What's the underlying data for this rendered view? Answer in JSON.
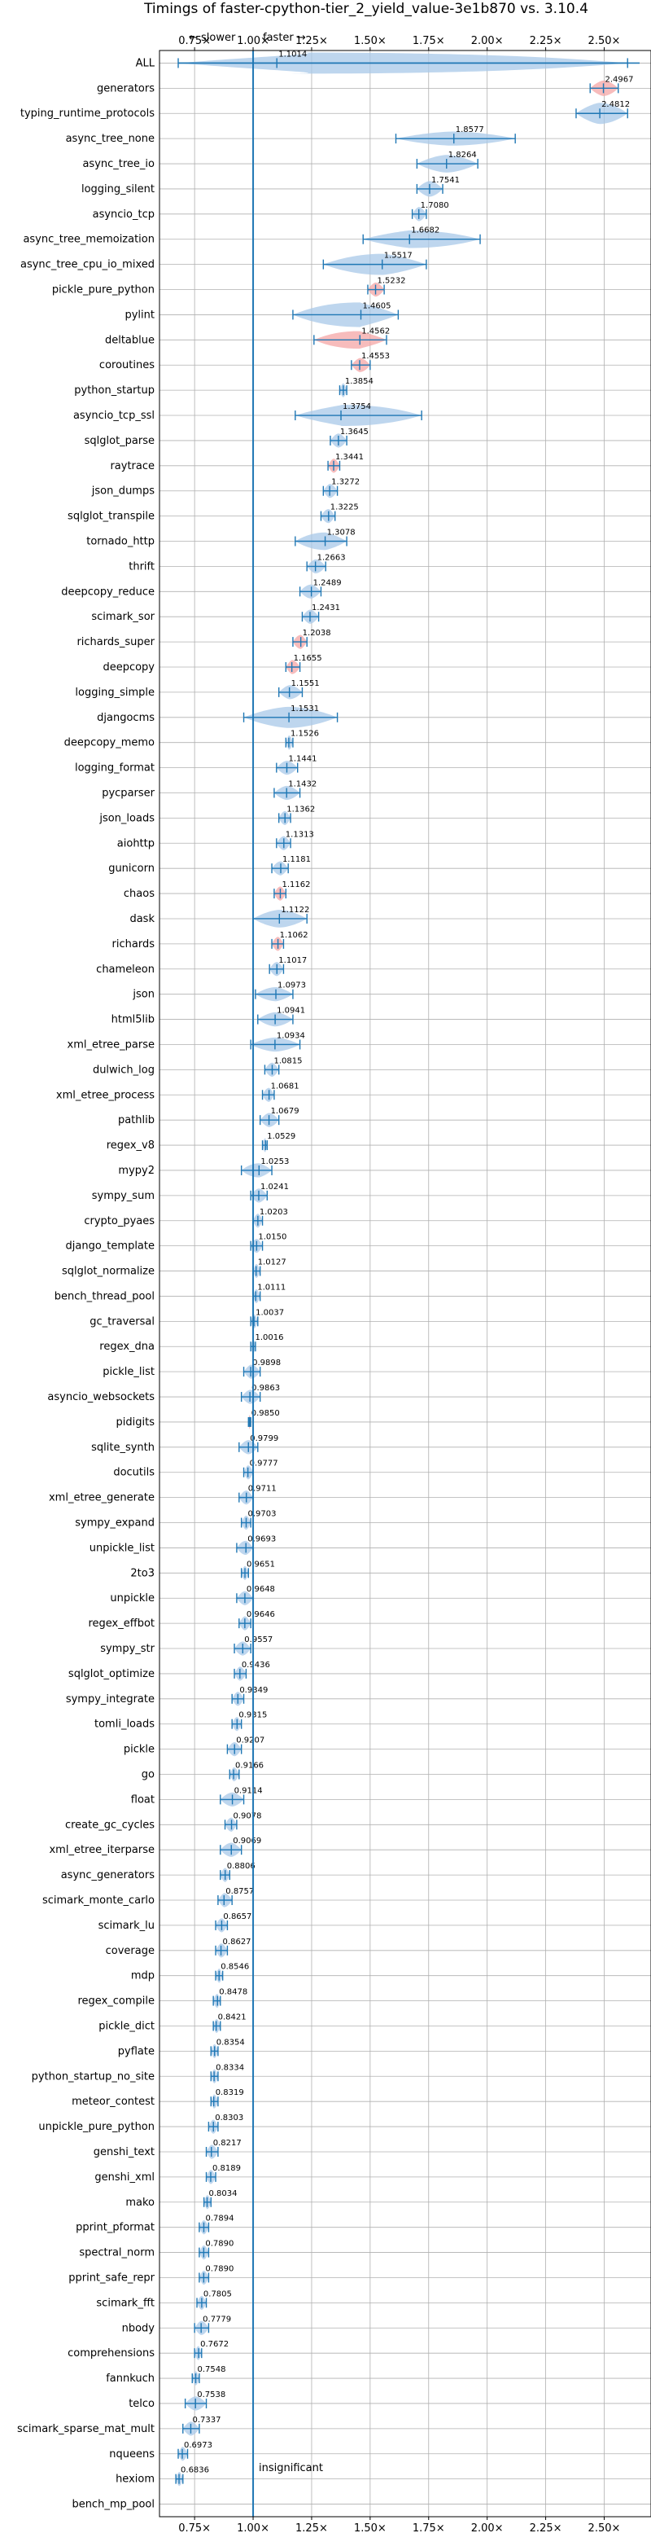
{
  "chart_data": {
    "type": "violin",
    "title": "Timings of faster-cpython-tier_2_yield_value-3e1b870 vs. 3.10.4",
    "direction_slower": "← slower",
    "direction_faster": "faster →",
    "xlim": [
      0.6,
      2.7
    ],
    "xticks": [
      0.75,
      1.0,
      1.25,
      1.5,
      1.75,
      2.0,
      2.25,
      2.5
    ],
    "xtick_labels": [
      "0.75×",
      "1.00×",
      "1.25×",
      "1.50×",
      "1.75×",
      "2.00×",
      "2.25×",
      "2.50×"
    ],
    "insignificant_label": "insignificant",
    "colors": {
      "faster": "#a8c8e8",
      "slower": "#f4a6a6",
      "line": "#1f77b4",
      "median": "#ff0000"
    },
    "benchmarks": [
      {
        "name": "ALL",
        "value": 1.1014,
        "label": "1.1014",
        "lo": 0.68,
        "hi": 2.6,
        "half": 0.3,
        "sig": true
      },
      {
        "name": "generators",
        "value": 2.4967,
        "label": "2.4967",
        "lo": 2.44,
        "hi": 2.56,
        "half": 0.22,
        "sig": true
      },
      {
        "name": "typing_runtime_protocols",
        "value": 2.4812,
        "label": "2.4812",
        "lo": 2.38,
        "hi": 2.6,
        "half": 0.3,
        "sig": true
      },
      {
        "name": "async_tree_none",
        "value": 1.8577,
        "label": "1.8577",
        "lo": 1.61,
        "hi": 2.12,
        "half": 0.2,
        "sig": true
      },
      {
        "name": "async_tree_io",
        "value": 1.8264,
        "label": "1.8264",
        "lo": 1.7,
        "hi": 1.96,
        "half": 0.25,
        "sig": true
      },
      {
        "name": "logging_silent",
        "value": 1.7541,
        "label": "1.7541",
        "lo": 1.7,
        "hi": 1.81,
        "half": 0.22,
        "sig": true
      },
      {
        "name": "asyncio_tcp",
        "value": 1.708,
        "label": "1.7080",
        "lo": 1.68,
        "hi": 1.74,
        "half": 0.2,
        "sig": true
      },
      {
        "name": "async_tree_memoization",
        "value": 1.6682,
        "label": "1.6682",
        "lo": 1.47,
        "hi": 1.97,
        "half": 0.25,
        "sig": true
      },
      {
        "name": "async_tree_cpu_io_mixed",
        "value": 1.5517,
        "label": "1.5517",
        "lo": 1.3,
        "hi": 1.74,
        "half": 0.3,
        "sig": true
      },
      {
        "name": "pickle_pure_python",
        "value": 1.5232,
        "label": "1.5232",
        "lo": 1.49,
        "hi": 1.56,
        "half": 0.2,
        "sig": true
      },
      {
        "name": "pylint",
        "value": 1.4605,
        "label": "1.4605",
        "lo": 1.17,
        "hi": 1.62,
        "half": 0.35,
        "sig": true
      },
      {
        "name": "deltablue",
        "value": 1.4562,
        "label": "1.4562",
        "lo": 1.26,
        "hi": 1.57,
        "half": 0.25,
        "sig": true
      },
      {
        "name": "coroutines",
        "value": 1.4553,
        "label": "1.4553",
        "lo": 1.42,
        "hi": 1.5,
        "half": 0.2,
        "sig": true
      },
      {
        "name": "python_startup",
        "value": 1.3854,
        "label": "1.3854",
        "lo": 1.37,
        "hi": 1.4,
        "half": 0.2,
        "sig": true
      },
      {
        "name": "asyncio_tcp_ssl",
        "value": 1.3754,
        "label": "1.3754",
        "lo": 1.18,
        "hi": 1.72,
        "half": 0.3,
        "sig": true
      },
      {
        "name": "sqlglot_parse",
        "value": 1.3645,
        "label": "1.3645",
        "lo": 1.33,
        "hi": 1.4,
        "half": 0.2,
        "sig": true
      },
      {
        "name": "raytrace",
        "value": 1.3441,
        "label": "1.3441",
        "lo": 1.32,
        "hi": 1.37,
        "half": 0.2,
        "sig": true
      },
      {
        "name": "json_dumps",
        "value": 1.3272,
        "label": "1.3272",
        "lo": 1.3,
        "hi": 1.36,
        "half": 0.2,
        "sig": true
      },
      {
        "name": "sqlglot_transpile",
        "value": 1.3225,
        "label": "1.3225",
        "lo": 1.29,
        "hi": 1.35,
        "half": 0.2,
        "sig": true
      },
      {
        "name": "tornado_http",
        "value": 1.3078,
        "label": "1.3078",
        "lo": 1.18,
        "hi": 1.4,
        "half": 0.25,
        "sig": true
      },
      {
        "name": "thrift",
        "value": 1.2663,
        "label": "1.2663",
        "lo": 1.23,
        "hi": 1.31,
        "half": 0.2,
        "sig": true
      },
      {
        "name": "deepcopy_reduce",
        "value": 1.2489,
        "label": "1.2489",
        "lo": 1.2,
        "hi": 1.29,
        "half": 0.2,
        "sig": true
      },
      {
        "name": "scimark_sor",
        "value": 1.2431,
        "label": "1.2431",
        "lo": 1.21,
        "hi": 1.28,
        "half": 0.2,
        "sig": true
      },
      {
        "name": "richards_super",
        "value": 1.2038,
        "label": "1.2038",
        "lo": 1.17,
        "hi": 1.23,
        "half": 0.2,
        "sig": true
      },
      {
        "name": "deepcopy",
        "value": 1.1655,
        "label": "1.1655",
        "lo": 1.14,
        "hi": 1.2,
        "half": 0.2,
        "sig": true
      },
      {
        "name": "logging_simple",
        "value": 1.1551,
        "label": "1.1551",
        "lo": 1.11,
        "hi": 1.21,
        "half": 0.2,
        "sig": true
      },
      {
        "name": "djangocms",
        "value": 1.1531,
        "label": "1.1531",
        "lo": 0.96,
        "hi": 1.36,
        "half": 0.3,
        "sig": true
      },
      {
        "name": "deepcopy_memo",
        "value": 1.1526,
        "label": "1.1526",
        "lo": 1.14,
        "hi": 1.17,
        "half": 0.2,
        "sig": true
      },
      {
        "name": "logging_format",
        "value": 1.1441,
        "label": "1.1441",
        "lo": 1.1,
        "hi": 1.19,
        "half": 0.2,
        "sig": true
      },
      {
        "name": "pycparser",
        "value": 1.1432,
        "label": "1.1432",
        "lo": 1.09,
        "hi": 1.2,
        "half": 0.2,
        "sig": true
      },
      {
        "name": "json_loads",
        "value": 1.1362,
        "label": "1.1362",
        "lo": 1.11,
        "hi": 1.16,
        "half": 0.2,
        "sig": true
      },
      {
        "name": "aiohttp",
        "value": 1.1313,
        "label": "1.1313",
        "lo": 1.1,
        "hi": 1.16,
        "half": 0.2,
        "sig": true
      },
      {
        "name": "gunicorn",
        "value": 1.1181,
        "label": "1.1181",
        "lo": 1.08,
        "hi": 1.15,
        "half": 0.2,
        "sig": true
      },
      {
        "name": "chaos",
        "value": 1.1162,
        "label": "1.1162",
        "lo": 1.09,
        "hi": 1.14,
        "half": 0.2,
        "sig": true
      },
      {
        "name": "dask",
        "value": 1.1122,
        "label": "1.1122",
        "lo": 1.0,
        "hi": 1.23,
        "half": 0.25,
        "sig": true
      },
      {
        "name": "richards",
        "value": 1.1062,
        "label": "1.1062",
        "lo": 1.08,
        "hi": 1.13,
        "half": 0.2,
        "sig": true
      },
      {
        "name": "chameleon",
        "value": 1.1017,
        "label": "1.1017",
        "lo": 1.07,
        "hi": 1.13,
        "half": 0.2,
        "sig": true
      },
      {
        "name": "json",
        "value": 1.0973,
        "label": "1.0973",
        "lo": 1.01,
        "hi": 1.17,
        "half": 0.2,
        "sig": true
      },
      {
        "name": "html5lib",
        "value": 1.0941,
        "label": "1.0941",
        "lo": 1.02,
        "hi": 1.17,
        "half": 0.2,
        "sig": true
      },
      {
        "name": "xml_etree_parse",
        "value": 1.0934,
        "label": "1.0934",
        "lo": 0.99,
        "hi": 1.2,
        "half": 0.2,
        "sig": true
      },
      {
        "name": "dulwich_log",
        "value": 1.0815,
        "label": "1.0815",
        "lo": 1.05,
        "hi": 1.11,
        "half": 0.2,
        "sig": true
      },
      {
        "name": "xml_etree_process",
        "value": 1.0681,
        "label": "1.0681",
        "lo": 1.04,
        "hi": 1.09,
        "half": 0.2,
        "sig": true
      },
      {
        "name": "pathlib",
        "value": 1.0679,
        "label": "1.0679",
        "lo": 1.03,
        "hi": 1.11,
        "half": 0.2,
        "sig": true
      },
      {
        "name": "regex_v8",
        "value": 1.0529,
        "label": "1.0529",
        "lo": 1.04,
        "hi": 1.06,
        "half": 0.2,
        "sig": true
      },
      {
        "name": "mypy2",
        "value": 1.0253,
        "label": "1.0253",
        "lo": 0.95,
        "hi": 1.08,
        "half": 0.2,
        "sig": false
      },
      {
        "name": "sympy_sum",
        "value": 1.0241,
        "label": "1.0241",
        "lo": 0.99,
        "hi": 1.06,
        "half": 0.2,
        "sig": false
      },
      {
        "name": "crypto_pyaes",
        "value": 1.0203,
        "label": "1.0203",
        "lo": 1.0,
        "hi": 1.04,
        "half": 0.2,
        "sig": false
      },
      {
        "name": "django_template",
        "value": 1.015,
        "label": "1.0150",
        "lo": 0.99,
        "hi": 1.04,
        "half": 0.2,
        "sig": false
      },
      {
        "name": "sqlglot_normalize",
        "value": 1.0127,
        "label": "1.0127",
        "lo": 1.0,
        "hi": 1.03,
        "half": 0.2,
        "sig": false
      },
      {
        "name": "bench_thread_pool",
        "value": 1.0111,
        "label": "1.0111",
        "lo": 1.0,
        "hi": 1.03,
        "half": 0.2,
        "sig": false
      },
      {
        "name": "gc_traversal",
        "value": 1.0037,
        "label": "1.0037",
        "lo": 0.99,
        "hi": 1.02,
        "half": 0.2,
        "sig": false
      },
      {
        "name": "regex_dna",
        "value": 1.0016,
        "label": "1.0016",
        "lo": 0.99,
        "hi": 1.01,
        "half": 0.2,
        "sig": false
      },
      {
        "name": "pickle_list",
        "value": 0.9898,
        "label": "0.9898",
        "lo": 0.96,
        "hi": 1.03,
        "half": 0.2,
        "sig": false
      },
      {
        "name": "asyncio_websockets",
        "value": 0.9863,
        "label": "0.9863",
        "lo": 0.95,
        "hi": 1.03,
        "half": 0.2,
        "sig": false
      },
      {
        "name": "pidigits",
        "value": 0.985,
        "label": "0.9850",
        "lo": 0.98,
        "hi": 0.99,
        "half": 0.2,
        "sig": false
      },
      {
        "name": "sqlite_synth",
        "value": 0.9799,
        "label": "0.9799",
        "lo": 0.94,
        "hi": 1.02,
        "half": 0.2,
        "sig": false
      },
      {
        "name": "docutils",
        "value": 0.9777,
        "label": "0.9777",
        "lo": 0.96,
        "hi": 1.0,
        "half": 0.2,
        "sig": false
      },
      {
        "name": "xml_etree_generate",
        "value": 0.9711,
        "label": "0.9711",
        "lo": 0.94,
        "hi": 1.0,
        "half": 0.2,
        "sig": false
      },
      {
        "name": "sympy_expand",
        "value": 0.9703,
        "label": "0.9703",
        "lo": 0.95,
        "hi": 0.99,
        "half": 0.2,
        "sig": false
      },
      {
        "name": "unpickle_list",
        "value": 0.9693,
        "label": "0.9693",
        "lo": 0.93,
        "hi": 1.0,
        "half": 0.2,
        "sig": false
      },
      {
        "name": "2to3",
        "value": 0.9651,
        "label": "0.9651",
        "lo": 0.95,
        "hi": 0.98,
        "half": 0.2,
        "sig": true
      },
      {
        "name": "unpickle",
        "value": 0.9648,
        "label": "0.9648",
        "lo": 0.93,
        "hi": 1.0,
        "half": 0.2,
        "sig": true
      },
      {
        "name": "regex_effbot",
        "value": 0.9646,
        "label": "0.9646",
        "lo": 0.94,
        "hi": 0.99,
        "half": 0.2,
        "sig": true
      },
      {
        "name": "sympy_str",
        "value": 0.9557,
        "label": "0.9557",
        "lo": 0.92,
        "hi": 0.99,
        "half": 0.2,
        "sig": true
      },
      {
        "name": "sqlglot_optimize",
        "value": 0.9436,
        "label": "0.9436",
        "lo": 0.92,
        "hi": 0.97,
        "half": 0.2,
        "sig": true
      },
      {
        "name": "sympy_integrate",
        "value": 0.9349,
        "label": "0.9349",
        "lo": 0.91,
        "hi": 0.96,
        "half": 0.2,
        "sig": true
      },
      {
        "name": "tomli_loads",
        "value": 0.9315,
        "label": "0.9315",
        "lo": 0.91,
        "hi": 0.95,
        "half": 0.2,
        "sig": true
      },
      {
        "name": "pickle",
        "value": 0.9207,
        "label": "0.9207",
        "lo": 0.89,
        "hi": 0.95,
        "half": 0.2,
        "sig": true
      },
      {
        "name": "go",
        "value": 0.9166,
        "label": "0.9166",
        "lo": 0.9,
        "hi": 0.94,
        "half": 0.2,
        "sig": true
      },
      {
        "name": "float",
        "value": 0.9114,
        "label": "0.9114",
        "lo": 0.86,
        "hi": 0.96,
        "half": 0.2,
        "sig": true
      },
      {
        "name": "create_gc_cycles",
        "value": 0.9078,
        "label": "0.9078",
        "lo": 0.88,
        "hi": 0.93,
        "half": 0.2,
        "sig": true
      },
      {
        "name": "xml_etree_iterparse",
        "value": 0.9069,
        "label": "0.9069",
        "lo": 0.86,
        "hi": 0.95,
        "half": 0.2,
        "sig": true
      },
      {
        "name": "async_generators",
        "value": 0.8806,
        "label": "0.8806",
        "lo": 0.86,
        "hi": 0.9,
        "half": 0.2,
        "sig": true
      },
      {
        "name": "scimark_monte_carlo",
        "value": 0.8757,
        "label": "0.8757",
        "lo": 0.85,
        "hi": 0.91,
        "half": 0.2,
        "sig": true
      },
      {
        "name": "scimark_lu",
        "value": 0.8657,
        "label": "0.8657",
        "lo": 0.84,
        "hi": 0.89,
        "half": 0.2,
        "sig": true
      },
      {
        "name": "coverage",
        "value": 0.8627,
        "label": "0.8627",
        "lo": 0.84,
        "hi": 0.89,
        "half": 0.2,
        "sig": true
      },
      {
        "name": "mdp",
        "value": 0.8546,
        "label": "0.8546",
        "lo": 0.84,
        "hi": 0.87,
        "half": 0.2,
        "sig": true
      },
      {
        "name": "regex_compile",
        "value": 0.8478,
        "label": "0.8478",
        "lo": 0.83,
        "hi": 0.86,
        "half": 0.2,
        "sig": true
      },
      {
        "name": "pickle_dict",
        "value": 0.8421,
        "label": "0.8421",
        "lo": 0.83,
        "hi": 0.86,
        "half": 0.2,
        "sig": true
      },
      {
        "name": "pyflate",
        "value": 0.8354,
        "label": "0.8354",
        "lo": 0.82,
        "hi": 0.85,
        "half": 0.2,
        "sig": true
      },
      {
        "name": "python_startup_no_site",
        "value": 0.8334,
        "label": "0.8334",
        "lo": 0.82,
        "hi": 0.85,
        "half": 0.2,
        "sig": true
      },
      {
        "name": "meteor_contest",
        "value": 0.8319,
        "label": "0.8319",
        "lo": 0.82,
        "hi": 0.85,
        "half": 0.2,
        "sig": true
      },
      {
        "name": "unpickle_pure_python",
        "value": 0.8303,
        "label": "0.8303",
        "lo": 0.81,
        "hi": 0.85,
        "half": 0.2,
        "sig": true
      },
      {
        "name": "genshi_text",
        "value": 0.8217,
        "label": "0.8217",
        "lo": 0.8,
        "hi": 0.85,
        "half": 0.2,
        "sig": true
      },
      {
        "name": "genshi_xml",
        "value": 0.8189,
        "label": "0.8189",
        "lo": 0.8,
        "hi": 0.84,
        "half": 0.2,
        "sig": true
      },
      {
        "name": "mako",
        "value": 0.8034,
        "label": "0.8034",
        "lo": 0.79,
        "hi": 0.82,
        "half": 0.2,
        "sig": true
      },
      {
        "name": "pprint_pformat",
        "value": 0.7894,
        "label": "0.7894",
        "lo": 0.77,
        "hi": 0.81,
        "half": 0.2,
        "sig": true
      },
      {
        "name": "spectral_norm",
        "value": 0.789,
        "label": "0.7890",
        "lo": 0.77,
        "hi": 0.81,
        "half": 0.2,
        "sig": true
      },
      {
        "name": "pprint_safe_repr",
        "value": 0.789,
        "label": "0.7890",
        "lo": 0.77,
        "hi": 0.81,
        "half": 0.2,
        "sig": true
      },
      {
        "name": "scimark_fft",
        "value": 0.7805,
        "label": "0.7805",
        "lo": 0.76,
        "hi": 0.8,
        "half": 0.2,
        "sig": true
      },
      {
        "name": "nbody",
        "value": 0.7779,
        "label": "0.7779",
        "lo": 0.75,
        "hi": 0.81,
        "half": 0.2,
        "sig": true
      },
      {
        "name": "comprehensions",
        "value": 0.7672,
        "label": "0.7672",
        "lo": 0.75,
        "hi": 0.78,
        "half": 0.2,
        "sig": true
      },
      {
        "name": "fannkuch",
        "value": 0.7548,
        "label": "0.7548",
        "lo": 0.74,
        "hi": 0.77,
        "half": 0.2,
        "sig": true
      },
      {
        "name": "telco",
        "value": 0.7538,
        "label": "0.7538",
        "lo": 0.71,
        "hi": 0.8,
        "half": 0.2,
        "sig": true
      },
      {
        "name": "scimark_sparse_mat_mult",
        "value": 0.7337,
        "label": "0.7337",
        "lo": 0.7,
        "hi": 0.77,
        "half": 0.2,
        "sig": true
      },
      {
        "name": "nqueens",
        "value": 0.6973,
        "label": "0.6973",
        "lo": 0.68,
        "hi": 0.72,
        "half": 0.2,
        "sig": true
      },
      {
        "name": "hexiom",
        "value": 0.6836,
        "label": "0.6836",
        "lo": 0.67,
        "hi": 0.7,
        "half": 0.2,
        "sig": true
      },
      {
        "name": "bench_mp_pool",
        "value": null,
        "label": "",
        "lo": null,
        "hi": null,
        "half": 0,
        "sig": false
      }
    ]
  }
}
